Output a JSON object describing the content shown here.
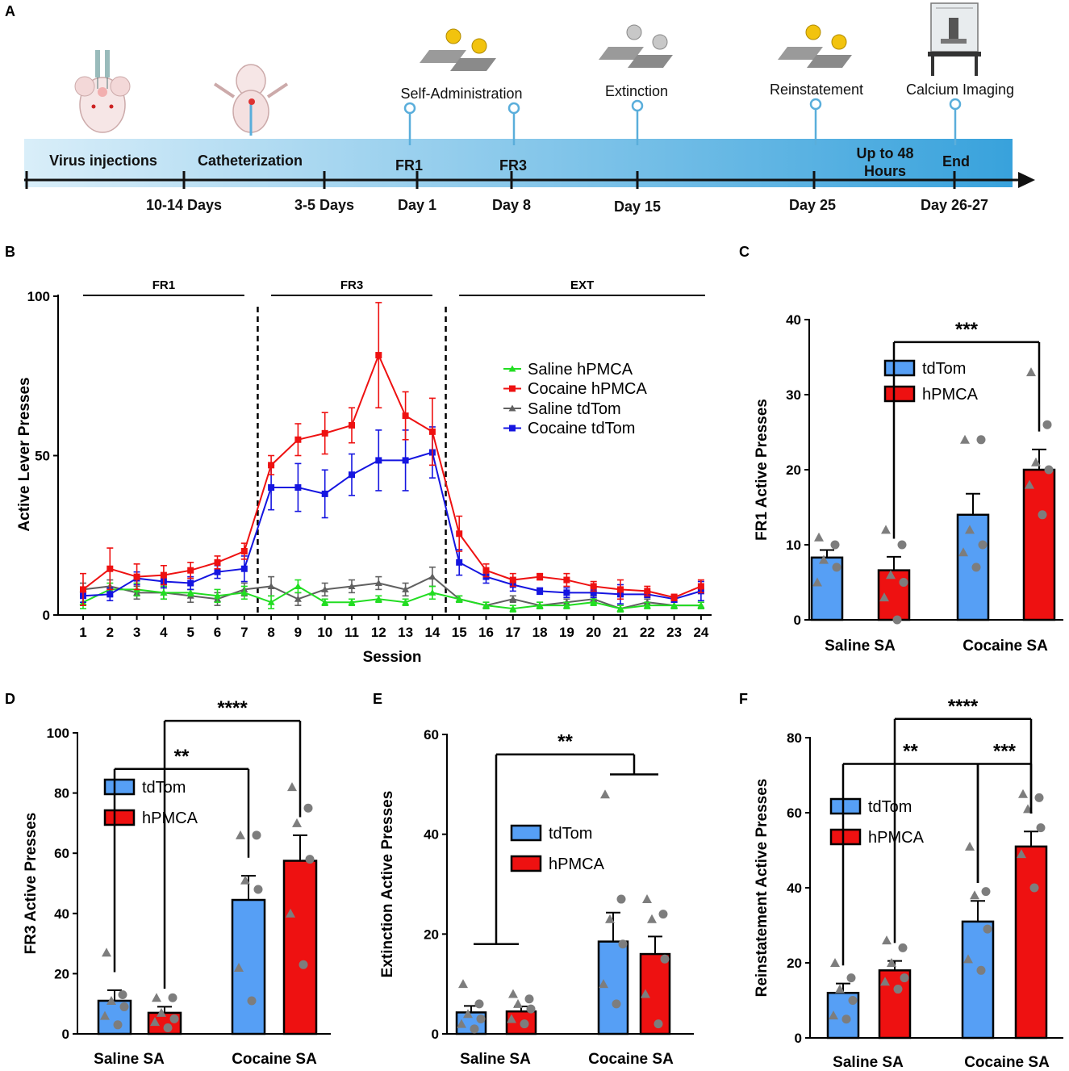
{
  "panel_letters": {
    "a": "A",
    "b": "B",
    "c": "C",
    "d": "D",
    "e": "E",
    "f": "F"
  },
  "timeline": {
    "phases": [
      "Virus injections",
      "Catheterization"
    ],
    "events": [
      "Self-Administration",
      "Extinction",
      "Reinstatement",
      "Calcium Imaging"
    ],
    "bar_labels": [
      "FR1",
      "FR3",
      "Up to 48",
      "Hours",
      "End"
    ],
    "days": [
      "10-14 Days",
      "3-5 Days",
      "Day 1",
      "Day 8",
      "Day 15",
      "Day 25",
      "Day 26-27"
    ],
    "colors": {
      "gradient_start": "#d9eef9",
      "gradient_end": "#38a2dc",
      "pin": "#5aaedb"
    },
    "icons": [
      "mouse-injection-icon",
      "mouse-catheter-icon",
      "lever-pellet-icon",
      "microscope-rig-icon"
    ]
  },
  "chart_data": [
    {
      "id": "B",
      "type": "line",
      "xlabel": "Session",
      "ylabel": "Active Lever Presses",
      "ylim": [
        0,
        100
      ],
      "yticks": [
        0,
        50,
        100
      ],
      "x": [
        1,
        2,
        3,
        4,
        5,
        6,
        7,
        8,
        9,
        10,
        11,
        12,
        13,
        14,
        15,
        16,
        17,
        18,
        19,
        20,
        21,
        22,
        23,
        24
      ],
      "phase_labels": [
        "FR1",
        "FR3",
        "EXT"
      ],
      "phase_breaks": [
        7.5,
        14.5
      ],
      "series": [
        {
          "name": "Saline hPMCA",
          "color": "#22dd22",
          "marker": "triangle",
          "values": [
            4,
            8,
            8,
            7,
            7,
            6,
            7,
            4,
            9,
            4,
            4,
            5,
            4,
            7,
            5,
            3,
            2,
            3,
            3,
            4,
            2,
            3,
            3,
            3
          ],
          "errors": [
            2,
            2,
            2,
            2,
            1,
            2,
            2,
            2,
            2,
            1,
            1,
            1,
            1,
            2,
            1,
            1,
            1,
            1,
            1,
            1,
            1,
            1,
            1,
            1
          ]
        },
        {
          "name": "Cocaine hPMCA",
          "color": "#ee1111",
          "marker": "square",
          "values": [
            8,
            14.5,
            12,
            12.5,
            14,
            16.5,
            20,
            47,
            55,
            57,
            59.5,
            81.5,
            62.5,
            57.5,
            25.5,
            14,
            11,
            12,
            11,
            9,
            8,
            7.5,
            5.5,
            9
          ],
          "errors": [
            5,
            6.5,
            4,
            3,
            2.5,
            2,
            2.5,
            3,
            5,
            6.5,
            5.5,
            16.5,
            7.5,
            10.5,
            5.5,
            2,
            2,
            1,
            2,
            1.5,
            3,
            1.5,
            1,
            2
          ]
        },
        {
          "name": "Saline tdTom",
          "color": "#606060",
          "marker": "triangle",
          "values": [
            8,
            9,
            7,
            7,
            6,
            5,
            8,
            9,
            5,
            8,
            9,
            10,
            8,
            12,
            5,
            3,
            5,
            3,
            4,
            5,
            2,
            4,
            3,
            3
          ],
          "errors": [
            2,
            2,
            2,
            2,
            2,
            2,
            2,
            3,
            2,
            2,
            2,
            2,
            2,
            3,
            1,
            1,
            1,
            1,
            1,
            1,
            1,
            1,
            1,
            1
          ]
        },
        {
          "name": "Cocaine tdTom",
          "color": "#1515e0",
          "marker": "square",
          "values": [
            6,
            6.5,
            11.5,
            10.5,
            10,
            13.5,
            14.5,
            40,
            40,
            38,
            44,
            48.5,
            48.5,
            51,
            16.5,
            12,
            9.5,
            7.5,
            7,
            7,
            6.5,
            6.5,
            5,
            7.5
          ],
          "errors": [
            2,
            2,
            2,
            2,
            2,
            2,
            4,
            7,
            7.5,
            7.5,
            6.5,
            9.5,
            9.5,
            8,
            4,
            2,
            2,
            1,
            1.5,
            1.5,
            3,
            1,
            1,
            3
          ]
        }
      ]
    },
    {
      "id": "C",
      "type": "bar",
      "ylabel": "FR1  Active  Presses",
      "ylim": [
        0,
        40
      ],
      "yticks": [
        0,
        10,
        20,
        30,
        40
      ],
      "categories": [
        "Saline SA",
        "Cocaine SA"
      ],
      "series": [
        {
          "name": "tdTom",
          "color": "#569ff5",
          "values": [
            8.3,
            14
          ],
          "errors": [
            1,
            2.8
          ],
          "points": [
            [
              11,
              10,
              8,
              7,
              5
            ],
            [
              24,
              24,
              12,
              10,
              9,
              7
            ]
          ]
        },
        {
          "name": "hPMCA",
          "color": "#ee1111",
          "values": [
            6.6,
            20
          ],
          "errors": [
            1.8,
            2.7
          ],
          "points": [
            [
              12,
              10,
              6,
              5,
              3,
              0
            ],
            [
              33,
              26,
              21,
              20,
              18,
              14
            ]
          ]
        }
      ],
      "significance": [
        {
          "from": 1,
          "to": 3,
          "label": "***",
          "level": 37
        }
      ]
    },
    {
      "id": "D",
      "type": "bar",
      "ylabel": "FR3 Active Presses",
      "ylim": [
        0,
        100
      ],
      "yticks": [
        0,
        20,
        40,
        60,
        80,
        100
      ],
      "categories": [
        "Saline SA",
        "Cocaine SA"
      ],
      "series": [
        {
          "name": "tdTom",
          "color": "#569ff5",
          "values": [
            11,
            44.5
          ],
          "errors": [
            3.5,
            8
          ],
          "points": [
            [
              27,
              13,
              11,
              9,
              6,
              3
            ],
            [
              66,
              66,
              51,
              48,
              22,
              11
            ]
          ]
        },
        {
          "name": "hPMCA",
          "color": "#ee1111",
          "values": [
            7,
            57.5
          ],
          "errors": [
            2,
            8.5
          ],
          "points": [
            [
              12,
              12,
              7,
              5,
              4,
              2
            ],
            [
              82,
              75,
              70,
              58,
              40,
              23
            ]
          ]
        }
      ],
      "significance": [
        {
          "from": 0,
          "to": 2,
          "label": "**",
          "level": 88
        },
        {
          "from": 1,
          "to": 3,
          "label": "****",
          "level": 104
        }
      ]
    },
    {
      "id": "E",
      "type": "bar",
      "ylabel": "Extinction Active Presses",
      "ylim": [
        0,
        60
      ],
      "yticks": [
        0,
        20,
        40,
        60
      ],
      "categories": [
        "Saline SA",
        "Cocaine SA"
      ],
      "series": [
        {
          "name": "tdTom",
          "color": "#569ff5",
          "values": [
            4.3,
            18.5
          ],
          "errors": [
            1.3,
            5.8
          ],
          "points": [
            [
              10,
              6,
              4,
              3,
              2,
              1
            ],
            [
              48,
              27,
              23,
              18,
              10,
              6
            ]
          ]
        },
        {
          "name": "hPMCA",
          "color": "#ee1111",
          "values": [
            4.5,
            16
          ],
          "errors": [
            1,
            3.5
          ],
          "points": [
            [
              8,
              7,
              6,
              5,
              3,
              2
            ],
            [
              27,
              24,
              23,
              15,
              8,
              2
            ]
          ]
        }
      ],
      "significance": [
        {
          "from": 0.5,
          "to": 2.5,
          "label": "**",
          "level": 56,
          "drop_from": 18,
          "drop_to": 52
        }
      ]
    },
    {
      "id": "F",
      "type": "bar",
      "ylabel": "Reinstatement  Active Presses",
      "ylim": [
        0,
        80
      ],
      "yticks": [
        0,
        20,
        40,
        60,
        80
      ],
      "categories": [
        "Saline SA",
        "Cocaine SA"
      ],
      "series": [
        {
          "name": "tdTom",
          "color": "#569ff5",
          "values": [
            12,
            31
          ],
          "errors": [
            2.5,
            5.5
          ],
          "points": [
            [
              20,
              16,
              13,
              10,
              6,
              5
            ],
            [
              51,
              39,
              38,
              29,
              21,
              18
            ]
          ]
        },
        {
          "name": "hPMCA",
          "color": "#ee1111",
          "values": [
            18,
            51
          ],
          "errors": [
            2.5,
            4
          ],
          "points": [
            [
              26,
              24,
              20,
              16,
              15,
              13
            ],
            [
              65,
              64,
              61,
              56,
              49,
              40
            ]
          ]
        }
      ],
      "significance": [
        {
          "from": 0,
          "to": 2,
          "label": "**",
          "level": 73
        },
        {
          "from": 2,
          "to": 3,
          "label": "***",
          "level": 73
        },
        {
          "from": 1,
          "to": 3,
          "label": "****",
          "level": 85
        }
      ]
    }
  ]
}
